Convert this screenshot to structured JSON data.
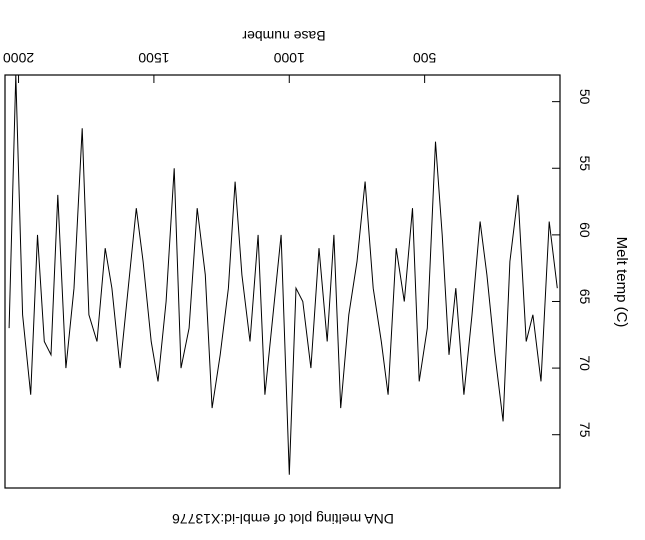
{
  "chart_data": {
    "type": "line",
    "title": "DNA melting plot of embl-id:X13776",
    "xlabel": "Base number",
    "ylabel": "Melt temp (C)",
    "xlim": [
      0,
      2050
    ],
    "ylim": [
      48,
      79
    ],
    "x_ticks": [
      500,
      1000,
      1500,
      2000
    ],
    "y_ticks": [
      50,
      55,
      60,
      65,
      70,
      75
    ],
    "orientation": "rotated-180",
    "grid": false,
    "line_color": "#000000",
    "series": [
      {
        "x": [
          10,
          40,
          70,
          100,
          125,
          155,
          185,
          210,
          240,
          270,
          295,
          325,
          355,
          385,
          410,
          435,
          460,
          490,
          520,
          545,
          575,
          605,
          635,
          660,
          690,
          720,
          750,
          780,
          810,
          835,
          860,
          890,
          920,
          950,
          975,
          1000,
          1030,
          1060,
          1090,
          1115,
          1145,
          1175,
          1200,
          1225,
          1255,
          1285,
          1310,
          1340,
          1370,
          1400,
          1425,
          1455,
          1485,
          1510,
          1540,
          1565,
          1595,
          1625,
          1655,
          1680,
          1710,
          1740,
          1765,
          1795,
          1825,
          1855,
          1880,
          1905,
          1930,
          1955,
          1985,
          2010,
          2035
        ],
        "y": [
          64,
          59,
          71,
          66,
          68,
          57,
          62,
          74,
          69,
          63,
          59,
          66,
          72,
          64,
          69,
          60,
          53,
          67,
          71,
          58,
          65,
          61,
          72,
          68,
          64,
          56,
          62,
          66,
          73,
          60,
          68,
          61,
          70,
          65,
          64,
          78,
          60,
          66,
          72,
          60,
          68,
          63,
          56,
          64,
          69,
          73,
          63,
          58,
          67,
          70,
          55,
          65,
          71,
          68,
          62,
          58,
          64,
          70,
          64,
          61,
          68,
          66,
          52,
          64,
          70,
          57,
          69,
          68,
          60,
          72,
          66,
          48,
          67
        ]
      }
    ]
  }
}
